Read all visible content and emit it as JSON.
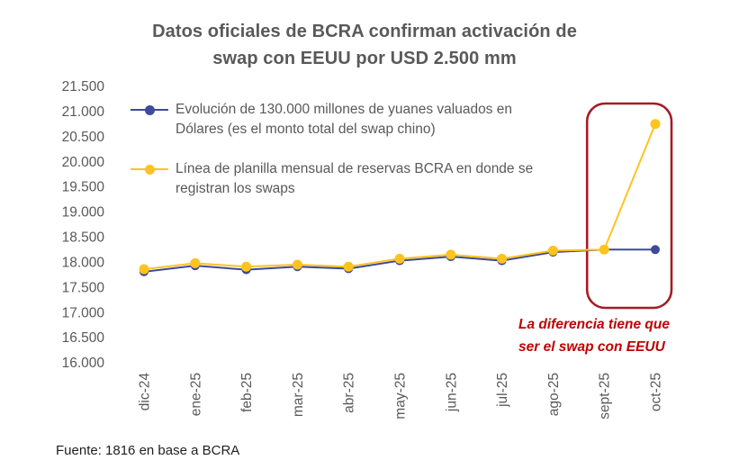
{
  "title": {
    "line1": "Datos oficiales de BCRA confirman activación de",
    "line2": "swap con EEUU por USD 2.500 mm"
  },
  "annotation": {
    "line1": "La diferencia tiene que",
    "line2": "ser el swap con EEUU",
    "color": "#C00000"
  },
  "footer": "Fuente: 1816 en base a BCRA",
  "colors": {
    "title_text": "#595959",
    "axis_text": "#595959",
    "series_yuan": "#3E4A9B",
    "series_reservas": "#FFC320",
    "highlight_box": "#A21E26"
  },
  "chart_data": {
    "type": "line",
    "categories": [
      "dic-24",
      "ene-25",
      "feb-25",
      "mar-25",
      "abr-25",
      "may-25",
      "jun-25",
      "jul-25",
      "ago-25",
      "sept-25",
      "oct-25"
    ],
    "series": [
      {
        "name": "Evolución de 130.000 millones de yuanes valuados en Dólares (es el monto total del swap chino)",
        "color": "#3E4A9B",
        "values": [
          17830,
          17950,
          17870,
          17930,
          17890,
          18050,
          18130,
          18050,
          18220,
          18270,
          18270
        ]
      },
      {
        "name": "Línea de planilla mensual de reservas BCRA en donde se registran los swaps",
        "color": "#FFC320",
        "values": [
          17880,
          18000,
          17930,
          17970,
          17930,
          18090,
          18170,
          18090,
          18250,
          18270,
          20770
        ]
      }
    ],
    "ylim": [
      16000,
      21500
    ],
    "ytick_step": 500,
    "ytick_labels": [
      "21.500",
      "21.000",
      "20.500",
      "20.000",
      "19.500",
      "19.000",
      "18.500",
      "18.000",
      "17.500",
      "17.000",
      "16.500",
      "16.000"
    ],
    "grid": false,
    "legend_position": "top-left-inside",
    "highlight": {
      "categories": [
        "sept-25",
        "oct-25"
      ],
      "box_color": "#A21E26"
    }
  }
}
